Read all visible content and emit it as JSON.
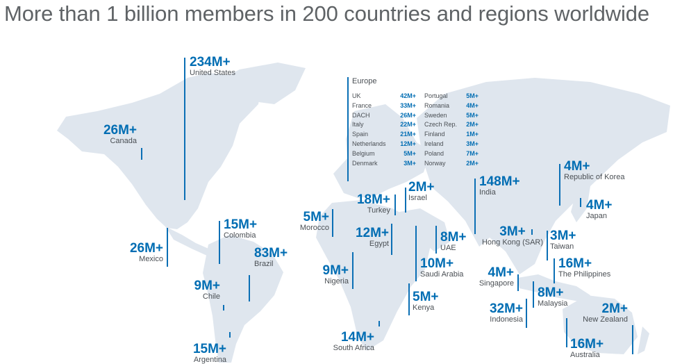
{
  "headline": "More than 1 billion members in 200 countries and regions worldwide",
  "colors": {
    "accent": "#006db3",
    "land": "#dfe6ee",
    "label": "#4a4f54",
    "headline": "#5f6366"
  },
  "countries": {
    "united_states": {
      "value": "234M+",
      "name": "United States"
    },
    "canada": {
      "value": "26M+",
      "name": "Canada"
    },
    "mexico": {
      "value": "26M+",
      "name": "Mexico"
    },
    "colombia": {
      "value": "15M+",
      "name": "Colombia"
    },
    "brazil": {
      "value": "83M+",
      "name": "Brazil"
    },
    "chile": {
      "value": "9M+",
      "name": "Chile"
    },
    "argentina": {
      "value": "15M+",
      "name": "Argentina"
    },
    "morocco": {
      "value": "5M+",
      "name": "Morocco"
    },
    "turkey": {
      "value": "18M+",
      "name": "Turkey"
    },
    "israel": {
      "value": "2M+",
      "name": "Israel"
    },
    "egypt": {
      "value": "12M+",
      "name": "Egypt"
    },
    "uae": {
      "value": "8M+",
      "name": "UAE"
    },
    "nigeria": {
      "value": "9M+",
      "name": "Nigeria"
    },
    "saudi_arabia": {
      "value": "10M+",
      "name": "Saudi Arabia"
    },
    "kenya": {
      "value": "5M+",
      "name": "Kenya"
    },
    "south_africa": {
      "value": "14M+",
      "name": "South Africa"
    },
    "india": {
      "value": "148M+",
      "name": "India"
    },
    "hong_kong": {
      "value": "3M+",
      "name": "Hong Kong (SAR)"
    },
    "singapore": {
      "value": "4M+",
      "name": "Singapore"
    },
    "indonesia": {
      "value": "32M+",
      "name": "Indonesia"
    },
    "malaysia": {
      "value": "8M+",
      "name": "Malaysia"
    },
    "korea": {
      "value": "4M+",
      "name": "Republic of Korea"
    },
    "japan": {
      "value": "4M+",
      "name": "Japan"
    },
    "taiwan": {
      "value": "3M+",
      "name": "Taiwan"
    },
    "philippines": {
      "value": "16M+",
      "name": "The Philippines"
    },
    "new_zealand": {
      "value": "2M+",
      "name": "New Zealand"
    },
    "australia": {
      "value": "16M+",
      "name": "Australia"
    }
  },
  "europe": {
    "title": "Europe",
    "left": [
      {
        "name": "UK",
        "value": "42M+"
      },
      {
        "name": "France",
        "value": "33M+"
      },
      {
        "name": "DACH",
        "value": "26M+"
      },
      {
        "name": "Italy",
        "value": "22M+"
      },
      {
        "name": "Spain",
        "value": "21M+"
      },
      {
        "name": "Netherlands",
        "value": "12M+"
      },
      {
        "name": "Belgium",
        "value": "5M+"
      },
      {
        "name": "Denmark",
        "value": "3M+"
      }
    ],
    "right": [
      {
        "name": "Portugal",
        "value": "5M+"
      },
      {
        "name": "Romania",
        "value": "4M+"
      },
      {
        "name": "Sweden",
        "value": "5M+"
      },
      {
        "name": "Czech Rep.",
        "value": "2M+"
      },
      {
        "name": "Finland",
        "value": "1M+"
      },
      {
        "name": "Ireland",
        "value": "3M+"
      },
      {
        "name": "Poland",
        "value": "7M+"
      },
      {
        "name": "Norway",
        "value": "2M+"
      }
    ]
  }
}
